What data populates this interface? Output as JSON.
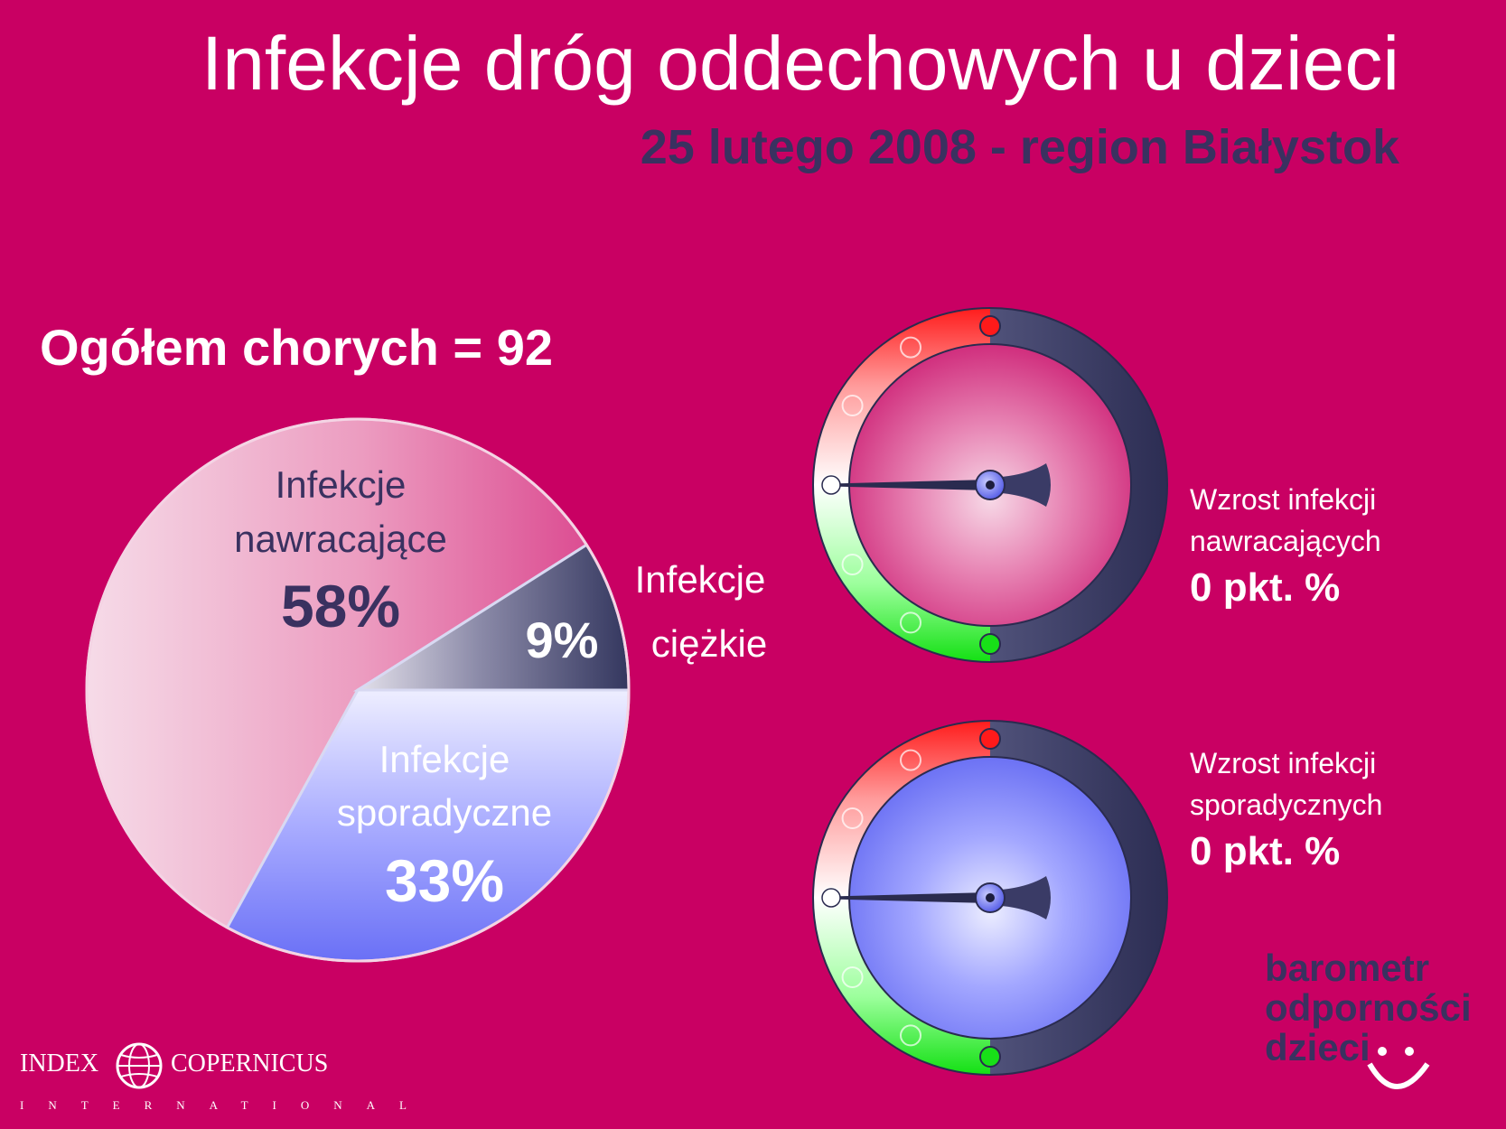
{
  "header": {
    "title": "Infekcje dróg oddechowych u dzieci",
    "subtitle": "25 lutego 2008 - region Białystok"
  },
  "total_label": "Ogółem chorych = 92",
  "chart_data": [
    {
      "type": "pie",
      "slices": [
        {
          "label_lines": [
            "Infekcje",
            "nawracające"
          ],
          "value": 58,
          "value_label": "58%"
        },
        {
          "label_lines": [
            "Infekcje",
            "ciężkie"
          ],
          "value": 9,
          "value_label": "9%"
        },
        {
          "label_lines": [
            "Infekcje",
            "sporadyczne"
          ],
          "value": 33,
          "value_label": "33%"
        }
      ],
      "colors": [
        "#e46ea3",
        "#3a3b63",
        "#9297ff"
      ]
    },
    {
      "type": "gauge",
      "label_lines": [
        "Wzrost infekcji",
        "nawracających"
      ],
      "value_label": "0 pkt. %",
      "value": 0,
      "face_color": "#dd3f8f"
    },
    {
      "type": "gauge",
      "label_lines": [
        "Wzrost infekcji",
        "sporadycznych"
      ],
      "value_label": "0 pkt. %",
      "value": 0,
      "face_color": "#7f85f5"
    }
  ],
  "brand": {
    "lines": [
      "barometr",
      "odporności",
      "dzieci"
    ],
    "smile_icon": "smiley-icon"
  },
  "logo": {
    "word1": "INDEX",
    "word2": "COPERNICUS",
    "sub": "INTERNATIONAL",
    "icon": "globe-icon"
  }
}
